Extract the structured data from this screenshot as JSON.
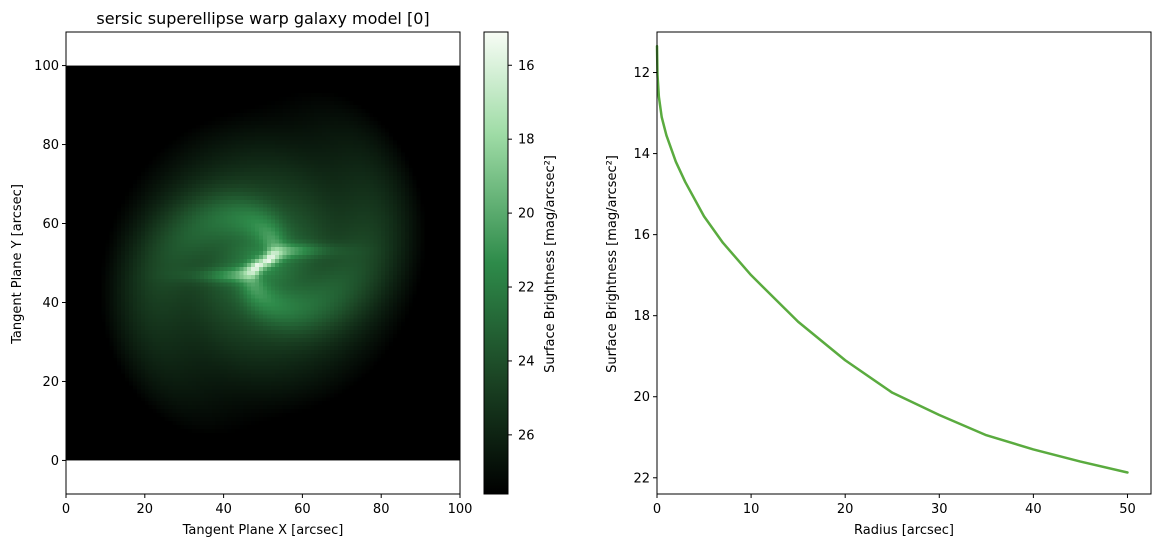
{
  "chart_data": [
    {
      "type": "heatmap",
      "title": "sersic superellipse warp galaxy model [0]",
      "xlabel": "Tangent Plane X [arcsec]",
      "ylabel": "Tangent Plane Y [arcsec]",
      "xlim": [
        0,
        100
      ],
      "ylim": [
        -8.5,
        108.5
      ],
      "image_extent": [
        0,
        100,
        0,
        100
      ],
      "xticks": [
        0,
        20,
        40,
        60,
        80,
        100
      ],
      "yticks": [
        0,
        20,
        40,
        60,
        80,
        100
      ],
      "grid_resolution": 100,
      "center": [
        50,
        50
      ],
      "colormap": "greens_reversed",
      "colormap_colors": [
        "#000000",
        "#1b4424",
        "#2e8b4a",
        "#9fdca6",
        "#f7fcf5"
      ],
      "background_color": "#ffffff",
      "colorbar": {
        "label": "Surface Brightness [mag/arcsec²]",
        "range": [
          15.1,
          27.6
        ],
        "ticks": [
          16,
          18,
          20,
          22,
          24,
          26
        ],
        "orientation": "vertical",
        "inverted": true
      }
    },
    {
      "type": "line",
      "xlabel": "Radius [arcsec]",
      "ylabel": "Surface Brightness [mag/arcsec²]",
      "xlim": [
        0,
        52.5
      ],
      "ylim": [
        22.4,
        11.0
      ],
      "y_inverted": true,
      "xticks": [
        0,
        10,
        20,
        30,
        40,
        50
      ],
      "yticks": [
        12,
        14,
        16,
        18,
        20,
        22
      ],
      "grid": false,
      "series": [
        {
          "color": "#5aab3f",
          "x": [
            0,
            0.05,
            0.2,
            0.5,
            1,
            2,
            3,
            5,
            7,
            10,
            15,
            20,
            25,
            30,
            35,
            40,
            45,
            50
          ],
          "y": [
            11.35,
            12.05,
            12.6,
            13.1,
            13.55,
            14.2,
            14.7,
            15.55,
            16.2,
            17.0,
            18.15,
            19.1,
            19.9,
            20.45,
            20.95,
            21.3,
            21.6,
            21.87
          ]
        }
      ]
    }
  ]
}
